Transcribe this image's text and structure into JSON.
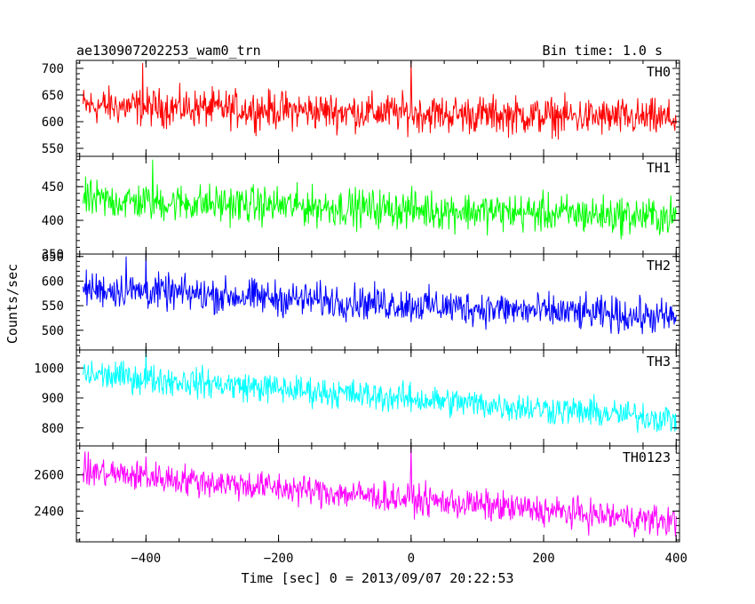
{
  "chart_data": {
    "type": "line",
    "title": "ae130907202253_wam0_trn",
    "subtitle": "Bin time: 1.0 s",
    "xlabel": "Time [sec] 0 = 2013/09/07 20:22:53",
    "ylabel": "Counts/sec",
    "xlim": [
      -505,
      405
    ],
    "x_ticks": [
      -400,
      -200,
      0,
      200,
      400
    ],
    "x_tick_labels": [
      "−400",
      "−200",
      "0",
      "200",
      "400"
    ],
    "bin_time_s": 1.0,
    "panels": [
      {
        "name": "TH0",
        "color": "#ff0000",
        "ylim": [
          535,
          715
        ],
        "y_ticks": [
          550,
          600,
          650,
          700
        ],
        "y_tick_labels": [
          "550",
          "600",
          "650",
          "700"
        ],
        "mean_start": 630,
        "mean_end": 605,
        "noise_amp": 25,
        "spikes": [
          {
            "x": 0,
            "y": 715
          },
          {
            "x": -405,
            "y": 710
          }
        ]
      },
      {
        "name": "TH1",
        "color": "#00ff00",
        "ylim": [
          350,
          495
        ],
        "y_ticks": [
          350,
          400,
          450
        ],
        "y_tick_labels": [
          "350",
          "400",
          "450"
        ],
        "mean_start": 430,
        "mean_end": 405,
        "noise_amp": 20,
        "spikes": [
          {
            "x": -390,
            "y": 490
          }
        ]
      },
      {
        "name": "TH2",
        "color": "#0000ff",
        "ylim": [
          460,
          655
        ],
        "y_ticks": [
          500,
          550,
          600,
          650
        ],
        "y_tick_labels": [
          "500",
          "550",
          "600",
          "650"
        ],
        "mean_start": 585,
        "mean_end": 525,
        "noise_amp": 25,
        "spikes": [
          {
            "x": -400,
            "y": 655
          },
          {
            "x": -430,
            "y": 650
          }
        ]
      },
      {
        "name": "TH3",
        "color": "#00ffff",
        "ylim": [
          740,
          1060
        ],
        "y_ticks": [
          800,
          900,
          1000
        ],
        "y_tick_labels": [
          "800",
          "900",
          "1000"
        ],
        "mean_start": 980,
        "mean_end": 830,
        "noise_amp": 35,
        "spikes": [
          {
            "x": -400,
            "y": 1060
          }
        ]
      },
      {
        "name": "TH0123",
        "color": "#ff00ff",
        "ylim": [
          2230,
          2760
        ],
        "y_ticks": [
          2400,
          2600
        ],
        "y_tick_labels": [
          "2400",
          "2600"
        ],
        "mean_start": 2620,
        "mean_end": 2340,
        "noise_amp": 60,
        "spikes": [
          {
            "x": 0,
            "y": 2760
          },
          {
            "x": -400,
            "y": 2700
          }
        ]
      }
    ]
  }
}
